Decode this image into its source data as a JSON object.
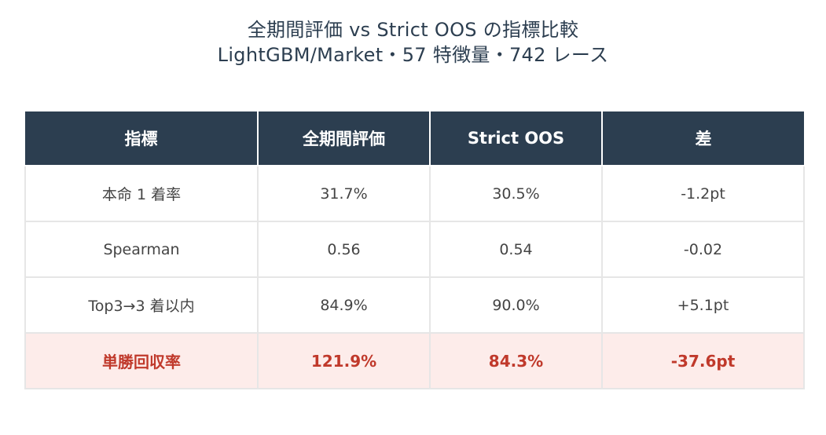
{
  "title": {
    "line1": "全期間評価 vs Strict OOS の指標比較",
    "line2": "LightGBM/Market・57 特徴量・742 レース"
  },
  "table": {
    "headers": [
      "指標",
      "全期間評価",
      "Strict OOS",
      "差"
    ],
    "rows": [
      [
        "本命 1 着率",
        "31.7%",
        "30.5%",
        "-1.2pt"
      ],
      [
        "Spearman",
        "0.56",
        "0.54",
        "-0.02"
      ],
      [
        "Top3→3 着以内",
        "84.9%",
        "90.0%",
        "+5.1pt"
      ],
      [
        "単勝回収率",
        "121.9%",
        "84.3%",
        "-37.6pt"
      ]
    ],
    "highlight_row": 3
  },
  "colors": {
    "header_bg": "#2c3e50",
    "title_text": "#2c3e50",
    "highlight_bg": "#fdecea",
    "highlight_text": "#c0392b",
    "border": "#e6e6e6"
  }
}
